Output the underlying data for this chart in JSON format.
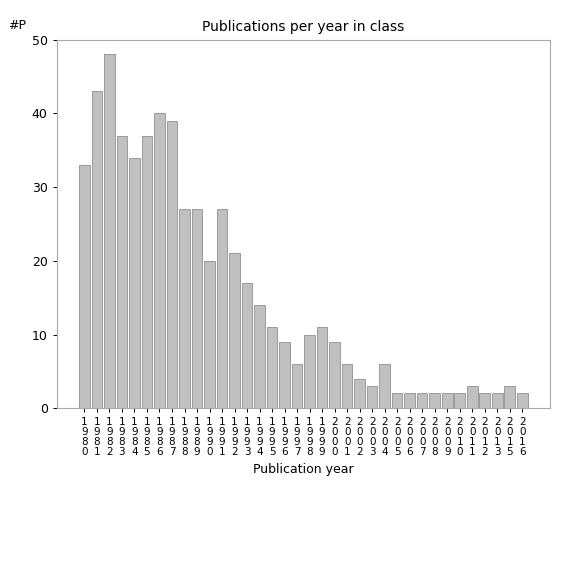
{
  "title": "Publications per year in class",
  "xlabel": "Publication year",
  "ylabel": "#P",
  "bar_color": "#c0c0c0",
  "bar_edgecolor": "#808080",
  "ylim": [
    0,
    50
  ],
  "yticks": [
    0,
    10,
    20,
    30,
    40,
    50
  ],
  "years": [
    "1980",
    "1981",
    "1982",
    "1983",
    "1984",
    "1985",
    "1986",
    "1987",
    "1988",
    "1989",
    "1990",
    "1991",
    "1992",
    "1993",
    "1994",
    "1995",
    "1996",
    "1997",
    "1998",
    "1999",
    "2000",
    "2001",
    "2002",
    "2003",
    "2004",
    "2005",
    "2006",
    "2007",
    "2008",
    "2009",
    "2010",
    "2011",
    "2012",
    "2013",
    "2015",
    "2016"
  ],
  "values": [
    33,
    43,
    48,
    37,
    34,
    37,
    40,
    39,
    27,
    27,
    20,
    27,
    21,
    17,
    14,
    11,
    9,
    6,
    10,
    11,
    9,
    6,
    4,
    3,
    6,
    2,
    2,
    2,
    2,
    2,
    2,
    3,
    2,
    2,
    3,
    2
  ]
}
